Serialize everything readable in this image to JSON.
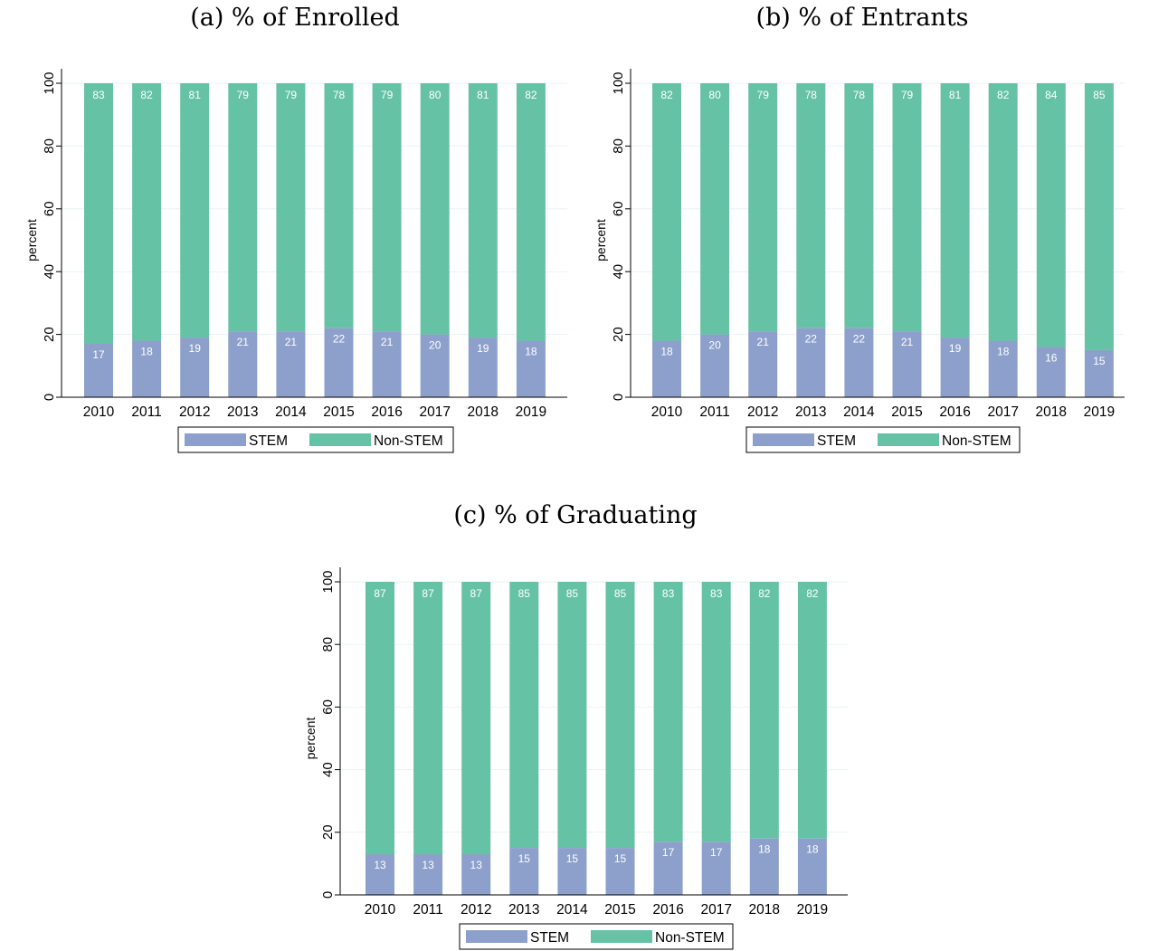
{
  "colors": {
    "stem": "#8da0cb",
    "non_stem": "#66c2a5",
    "grid": "#eaf2f3"
  },
  "chart_data": [
    {
      "type": "bar",
      "stacked": true,
      "title": "(a) % of Enrolled",
      "xlabel": "",
      "ylabel": "percent",
      "ylim": [
        0,
        100
      ],
      "yticks": [
        0,
        20,
        40,
        60,
        80,
        100
      ],
      "grid": true,
      "legend": "bottom",
      "categories": [
        "2010",
        "2011",
        "2012",
        "2013",
        "2014",
        "2015",
        "2016",
        "2017",
        "2018",
        "2019"
      ],
      "series": [
        {
          "name": "STEM",
          "values": [
            17,
            18,
            19,
            21,
            21,
            22,
            21,
            20,
            19,
            18
          ]
        },
        {
          "name": "Non-STEM",
          "values": [
            83,
            82,
            81,
            79,
            79,
            78,
            79,
            80,
            81,
            82
          ]
        }
      ]
    },
    {
      "type": "bar",
      "stacked": true,
      "title": "(b) % of Entrants",
      "xlabel": "",
      "ylabel": "percent",
      "ylim": [
        0,
        100
      ],
      "yticks": [
        0,
        20,
        40,
        60,
        80,
        100
      ],
      "grid": true,
      "legend": "bottom",
      "categories": [
        "2010",
        "2011",
        "2012",
        "2013",
        "2014",
        "2015",
        "2016",
        "2017",
        "2018",
        "2019"
      ],
      "series": [
        {
          "name": "STEM",
          "values": [
            18,
            20,
            21,
            22,
            22,
            21,
            19,
            18,
            16,
            15
          ]
        },
        {
          "name": "Non-STEM",
          "values": [
            82,
            80,
            79,
            78,
            78,
            79,
            81,
            82,
            84,
            85
          ]
        }
      ]
    },
    {
      "type": "bar",
      "stacked": true,
      "title": "(c) % of Graduating",
      "xlabel": "",
      "ylabel": "percent",
      "ylim": [
        0,
        100
      ],
      "yticks": [
        0,
        20,
        40,
        60,
        80,
        100
      ],
      "grid": true,
      "legend": "bottom",
      "categories": [
        "2010",
        "2011",
        "2012",
        "2013",
        "2014",
        "2015",
        "2016",
        "2017",
        "2018",
        "2019"
      ],
      "series": [
        {
          "name": "STEM",
          "values": [
            13,
            13,
            13,
            15,
            15,
            15,
            17,
            17,
            18,
            18
          ]
        },
        {
          "name": "Non-STEM",
          "values": [
            87,
            87,
            87,
            85,
            85,
            85,
            83,
            83,
            82,
            82
          ]
        }
      ]
    }
  ]
}
